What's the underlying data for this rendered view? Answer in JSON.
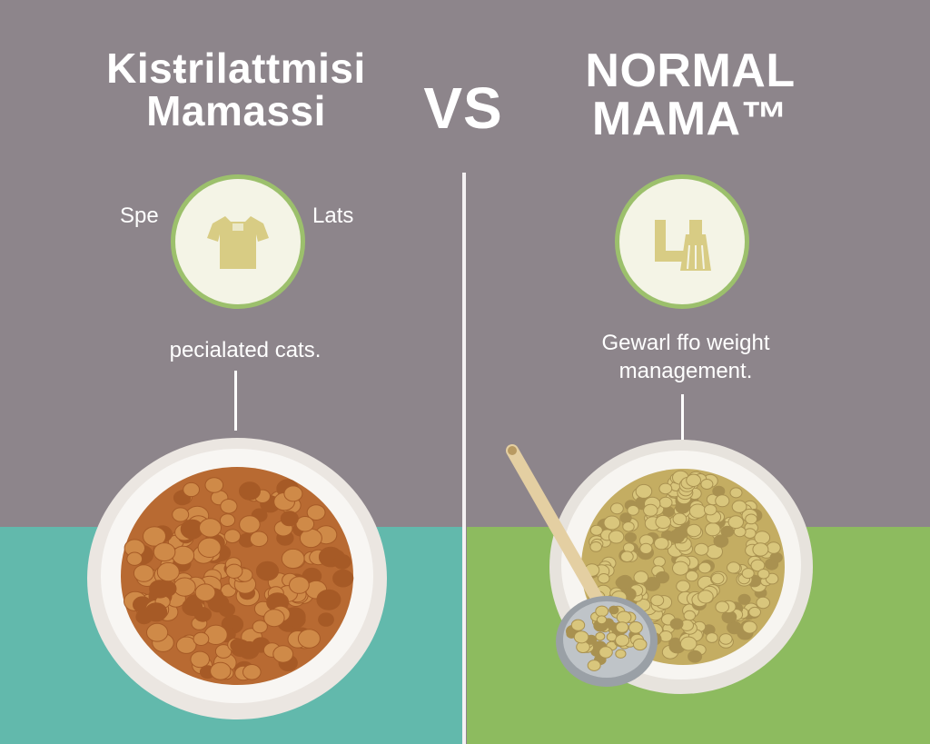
{
  "left": {
    "title_line1": "Kisŧrilattmisi",
    "title_line2": "Mamassi",
    "side_label_left": "Spe",
    "side_label_right": "Lats",
    "caption": "pecialated cats.",
    "icon": "tshirt-icon"
  },
  "vs_label": "VS",
  "right": {
    "title_line1": "NORMAL",
    "title_line2": "MAMA™",
    "caption_line1": "Gewarl ffo weight",
    "caption_line2": "management.",
    "icon": "lab-flask-icon"
  },
  "colors": {
    "background": "#8d858b",
    "left_bottom": "#62b9ac",
    "right_bottom": "#8dbb5f",
    "circle_border": "#9cc06c",
    "icon_fill": "#d8cc84",
    "kibble_left": "#cf8a48",
    "kibble_right": "#d9c67c"
  }
}
